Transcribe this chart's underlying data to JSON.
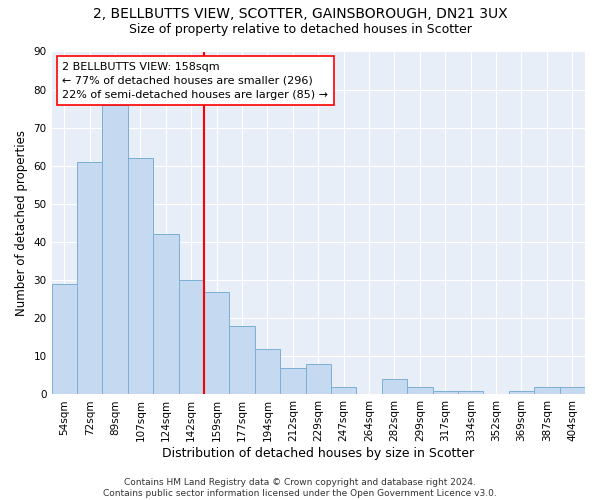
{
  "title1": "2, BELLBUTTS VIEW, SCOTTER, GAINSBOROUGH, DN21 3UX",
  "title2": "Size of property relative to detached houses in Scotter",
  "xlabel": "Distribution of detached houses by size in Scotter",
  "ylabel": "Number of detached properties",
  "categories": [
    "54sqm",
    "72sqm",
    "89sqm",
    "107sqm",
    "124sqm",
    "142sqm",
    "159sqm",
    "177sqm",
    "194sqm",
    "212sqm",
    "229sqm",
    "247sqm",
    "264sqm",
    "282sqm",
    "299sqm",
    "317sqm",
    "334sqm",
    "352sqm",
    "369sqm",
    "387sqm",
    "404sqm"
  ],
  "values": [
    29,
    61,
    76,
    62,
    42,
    30,
    27,
    18,
    12,
    7,
    8,
    2,
    0,
    4,
    2,
    1,
    1,
    0,
    1,
    2,
    2
  ],
  "bar_color": "#c5d9f0",
  "bar_edge_color": "#7bafd4",
  "vline_color": "red",
  "annotation_line1": "2 BELLBUTTS VIEW: 158sqm",
  "annotation_line2": "← 77% of detached houses are smaller (296)",
  "annotation_line3": "22% of semi-detached houses are larger (85) →",
  "annotation_box_color": "white",
  "annotation_box_edge": "red",
  "ylim": [
    0,
    90
  ],
  "yticks": [
    0,
    10,
    20,
    30,
    40,
    50,
    60,
    70,
    80,
    90
  ],
  "background_color": "#e8eef8",
  "grid_color": "white",
  "footer": "Contains HM Land Registry data © Crown copyright and database right 2024.\nContains public sector information licensed under the Open Government Licence v3.0.",
  "title1_fontsize": 10,
  "title2_fontsize": 9,
  "xlabel_fontsize": 9,
  "ylabel_fontsize": 8.5,
  "tick_fontsize": 7.5,
  "annotation_fontsize": 8,
  "footer_fontsize": 6.5
}
